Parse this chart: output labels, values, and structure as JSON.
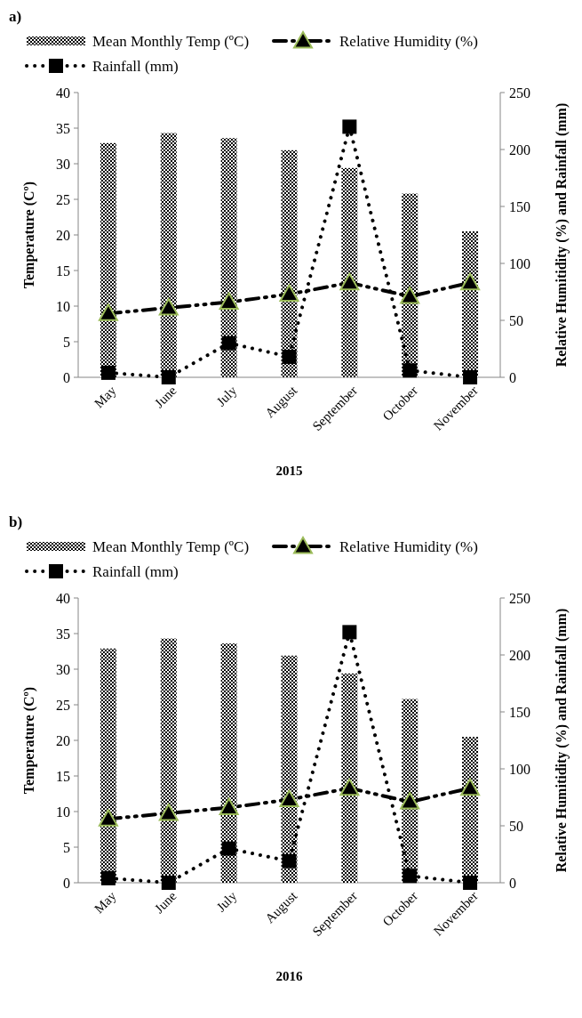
{
  "chart_data": [
    {
      "type": "bar",
      "title": "a)",
      "xlabel": "2015",
      "ylabel": "Temperature (Cº)",
      "y2label": "Relative Humitidity (%) and Rainfall (mm)",
      "categories": [
        "May",
        "June",
        "July",
        "August",
        "September",
        "October",
        "November"
      ],
      "series": [
        {
          "name": "Mean Monthly Temp (ºC)",
          "color": "#000000",
          "values": [
            32.9,
            34.3,
            33.6,
            31.9,
            29.4,
            25.8,
            20.5
          ]
        },
        {
          "name": "Relative Humidity (%)",
          "type": "line",
          "axis": "y2",
          "color": "#000000",
          "marker": "triangle",
          "line_style": "dashed",
          "values": [
            56,
            61,
            66,
            73,
            83,
            71,
            83
          ]
        },
        {
          "name": "Rainfall (mm)",
          "type": "line",
          "axis": "y2",
          "color": "#000000",
          "marker": "square",
          "line_style": "dotted",
          "values": [
            4,
            0,
            30,
            18,
            220,
            6,
            0
          ]
        }
      ],
      "ylim": [
        0,
        40
      ],
      "yticks": [
        0,
        5,
        10,
        15,
        20,
        25,
        30,
        35,
        40
      ],
      "y2lim": [
        0,
        250
      ],
      "y2ticks": [
        0,
        50,
        100,
        150,
        200,
        250
      ],
      "legend": "top",
      "grid": false
    },
    {
      "type": "bar",
      "title": "b)",
      "xlabel": "2016",
      "ylabel": "Temperature (Cº)",
      "y2label": "Relative Humitidity (%) and Rainfall (mm)",
      "categories": [
        "May",
        "June",
        "July",
        "August",
        "September",
        "October",
        "November"
      ],
      "series": [
        {
          "name": "Mean Monthly Temp (ºC)",
          "color": "#000000",
          "values": [
            32.9,
            34.3,
            33.6,
            31.9,
            29.4,
            25.8,
            20.5
          ]
        },
        {
          "name": "Relative Humidity (%)",
          "type": "line",
          "axis": "y2",
          "color": "#000000",
          "marker": "triangle",
          "line_style": "dashed",
          "values": [
            56,
            61,
            66,
            73,
            83,
            71,
            83
          ]
        },
        {
          "name": "Rainfall (mm)",
          "type": "line",
          "axis": "y2",
          "color": "#000000",
          "marker": "square",
          "line_style": "dotted",
          "values": [
            4,
            0,
            30,
            19,
            220,
            6,
            0
          ]
        }
      ],
      "ylim": [
        0,
        40
      ],
      "yticks": [
        0,
        5,
        10,
        15,
        20,
        25,
        30,
        35,
        40
      ],
      "y2lim": [
        0,
        250
      ],
      "y2ticks": [
        0,
        50,
        100,
        150,
        200,
        250
      ],
      "legend": "top",
      "grid": false
    }
  ]
}
